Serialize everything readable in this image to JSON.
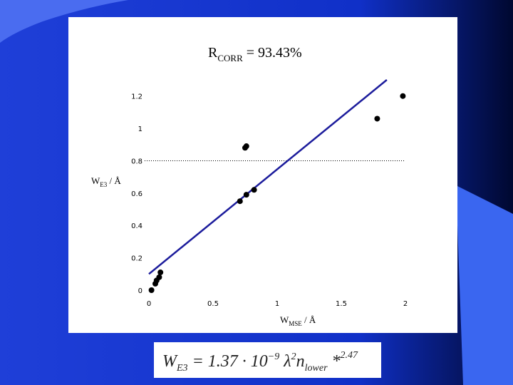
{
  "chart_data": {
    "type": "scatter",
    "title": {
      "main": "R",
      "sub": "CORR",
      "rest": " = 93.43%"
    },
    "y_label": {
      "main": "W",
      "sub": "E3",
      "rest": " / Å"
    },
    "x_label": {
      "main": "W",
      "sub": "MSE",
      "rest": " / Å"
    },
    "x": [
      0.02,
      0.05,
      0.06,
      0.08,
      0.09,
      0.71,
      0.76,
      0.82,
      0.75,
      0.76,
      1.78,
      1.98
    ],
    "values": [
      0.0,
      0.04,
      0.06,
      0.08,
      0.11,
      0.55,
      0.59,
      0.62,
      0.88,
      0.89,
      1.06,
      1.2
    ],
    "color": "#000000",
    "fit": {
      "x": [
        0,
        1.855
      ],
      "values": [
        0.1,
        1.3
      ],
      "color": "#1c1c9c"
    },
    "reference_line": 0.8,
    "xlim": [
      0,
      2
    ],
    "xticks": [
      0,
      0.5,
      1,
      1.5,
      2
    ],
    "ylim": [
      0,
      1.3
    ],
    "yticks": [
      0,
      0.2,
      0.4,
      0.6,
      0.8,
      1,
      1.2
    ]
  },
  "formula": {
    "w": "W",
    "w_sub": "E3",
    "coef": " = 1.37 · 10",
    "exp": "−9",
    "lambda": " λ",
    "lambda_exp": "2",
    "n": "n",
    "n_sub": "lower",
    "star": " *",
    "power": "2.47"
  }
}
